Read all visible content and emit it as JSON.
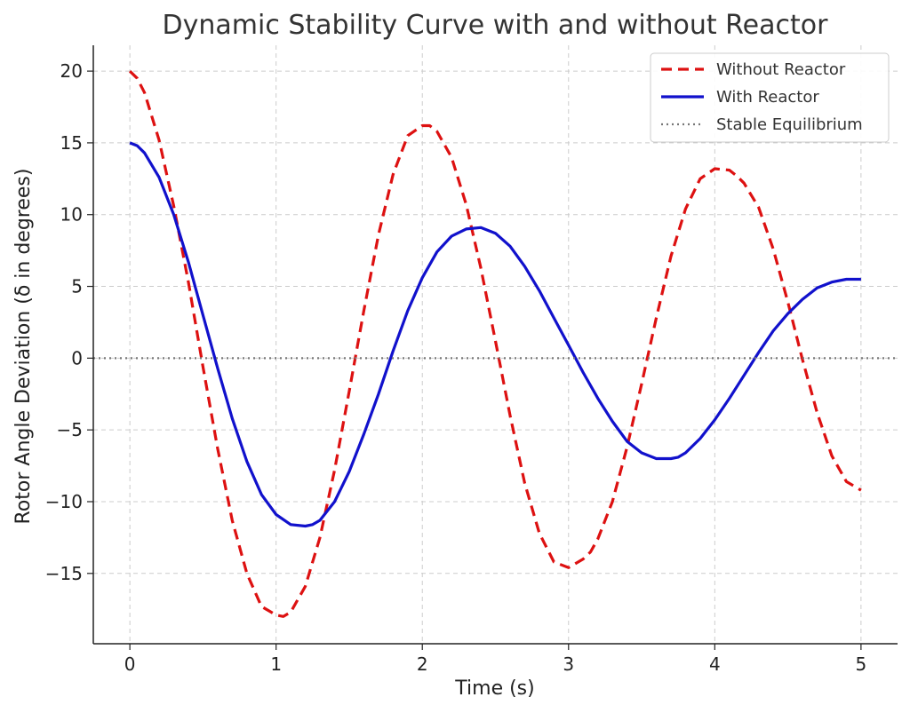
{
  "chart_data": {
    "type": "line",
    "title": "Dynamic Stability Curve with and without Reactor",
    "xlabel": "Time (s)",
    "ylabel": "Rotor Angle Deviation (δ in degrees)",
    "xlim": [
      -0.25,
      5.25
    ],
    "ylim": [
      -19.9,
      21.8
    ],
    "xticks": [
      0,
      1,
      2,
      3,
      4,
      5
    ],
    "xtick_labels": [
      "0",
      "1",
      "2",
      "3",
      "4",
      "5"
    ],
    "yticks": [
      -15,
      -10,
      -5,
      0,
      5,
      10,
      15,
      20
    ],
    "ytick_labels": [
      "−15",
      "−10",
      "−5",
      "0",
      "5",
      "10",
      "15",
      "20"
    ],
    "grid": true,
    "legend_position": "top-right",
    "series": [
      {
        "name": "Without Reactor",
        "style": "dashed",
        "color": "#dd1111",
        "x": [
          0,
          0.05,
          0.1,
          0.2,
          0.3,
          0.4,
          0.5,
          0.6,
          0.7,
          0.8,
          0.9,
          1.0,
          1.05,
          1.1,
          1.2,
          1.3,
          1.4,
          1.5,
          1.6,
          1.7,
          1.8,
          1.9,
          2.0,
          2.05,
          2.1,
          2.2,
          2.3,
          2.4,
          2.5,
          2.6,
          2.7,
          2.8,
          2.9,
          3.0,
          3.1,
          3.15,
          3.2,
          3.3,
          3.4,
          3.5,
          3.6,
          3.7,
          3.8,
          3.9,
          4.0,
          4.1,
          4.15,
          4.2,
          4.3,
          4.4,
          4.5,
          4.6,
          4.7,
          4.8,
          4.9,
          5.0
        ],
        "y": [
          20.0,
          19.5,
          18.5,
          15.2,
          10.6,
          5.3,
          -0.6,
          -6.3,
          -11.3,
          -15.0,
          -17.3,
          -17.9,
          -18.0,
          -17.7,
          -15.9,
          -12.5,
          -7.8,
          -2.3,
          3.3,
          8.6,
          12.8,
          15.5,
          16.2,
          16.2,
          15.8,
          14.0,
          10.7,
          6.3,
          1.2,
          -4.0,
          -8.7,
          -12.2,
          -14.2,
          -14.6,
          -14.0,
          -13.5,
          -12.6,
          -10.0,
          -6.2,
          -1.8,
          2.8,
          7.1,
          10.4,
          12.5,
          13.2,
          13.1,
          12.7,
          12.2,
          10.5,
          7.6,
          3.9,
          -0.1,
          -3.8,
          -6.8,
          -8.6,
          -9.2
        ]
      },
      {
        "name": "With Reactor",
        "style": "solid",
        "color": "#1111cc",
        "x": [
          0,
          0.05,
          0.1,
          0.2,
          0.3,
          0.4,
          0.5,
          0.6,
          0.7,
          0.8,
          0.9,
          1.0,
          1.1,
          1.2,
          1.25,
          1.3,
          1.4,
          1.5,
          1.6,
          1.7,
          1.8,
          1.9,
          2.0,
          2.1,
          2.2,
          2.3,
          2.4,
          2.5,
          2.6,
          2.7,
          2.8,
          2.9,
          3.0,
          3.1,
          3.2,
          3.3,
          3.4,
          3.5,
          3.6,
          3.7,
          3.75,
          3.8,
          3.9,
          4.0,
          4.1,
          4.2,
          4.3,
          4.4,
          4.5,
          4.6,
          4.7,
          4.8,
          4.9,
          5.0
        ],
        "y": [
          15.0,
          14.8,
          14.3,
          12.6,
          10.0,
          6.7,
          3.0,
          -0.7,
          -4.2,
          -7.2,
          -9.5,
          -10.9,
          -11.6,
          -11.7,
          -11.6,
          -11.3,
          -10.0,
          -7.9,
          -5.3,
          -2.5,
          0.5,
          3.3,
          5.6,
          7.4,
          8.5,
          9.0,
          9.1,
          8.7,
          7.8,
          6.4,
          4.7,
          2.8,
          0.9,
          -1.0,
          -2.8,
          -4.4,
          -5.8,
          -6.6,
          -7.0,
          -7.0,
          -6.9,
          -6.6,
          -5.6,
          -4.3,
          -2.8,
          -1.2,
          0.4,
          1.9,
          3.1,
          4.1,
          4.9,
          5.3,
          5.5,
          5.5
        ]
      },
      {
        "name": "Stable Equilibrium",
        "style": "dotted",
        "color": "#777777",
        "x": [
          -0.25,
          5.25
        ],
        "y": [
          0,
          0
        ]
      }
    ]
  }
}
